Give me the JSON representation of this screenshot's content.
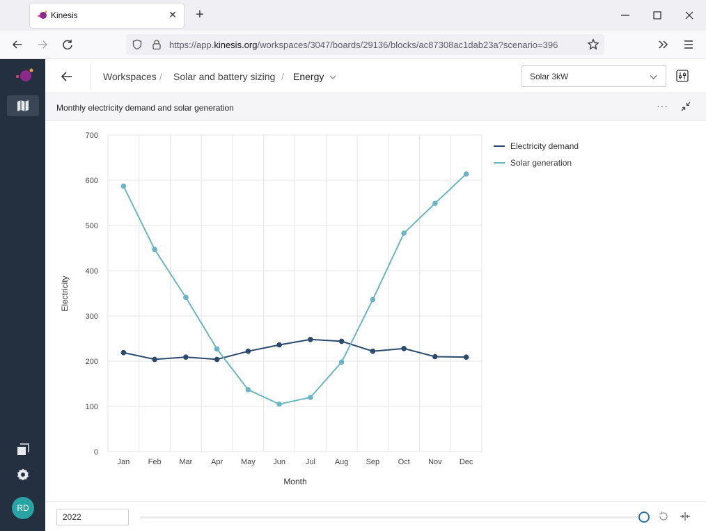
{
  "browser": {
    "tab_title": "Kinesis",
    "url_prefix": "https://app.",
    "url_domain": "kinesis.org",
    "url_path": "/workspaces/3047/boards/29136/blocks/ac87308ac1dab23a?scenario=396"
  },
  "sidebar": {
    "avatar_initials": "RD"
  },
  "header": {
    "breadcrumbs": [
      "Workspaces",
      "Solar and battery sizing",
      "Energy"
    ],
    "scenario_selected": "Solar 3kW"
  },
  "block": {
    "title": "Monthly electricity demand and solar generation"
  },
  "footer": {
    "year_value": "2022"
  },
  "colors": {
    "demand": "#2b4a6b",
    "solar": "#6bb5c2",
    "sidebar": "#243040",
    "accent": "#2c6e9a"
  },
  "chart_data": {
    "type": "line",
    "x": [
      "Jan",
      "Feb",
      "Mar",
      "Apr",
      "May",
      "Jun",
      "Jul",
      "Aug",
      "Sep",
      "Oct",
      "Nov",
      "Dec"
    ],
    "series": [
      {
        "name": "Electricity demand",
        "values": [
          219,
          204,
          209,
          204,
          222,
          236,
          248,
          244,
          222,
          228,
          210,
          209
        ]
      },
      {
        "name": "Solar generation",
        "values": [
          587,
          447,
          341,
          227,
          137,
          105,
          120,
          198,
          336,
          483,
          549,
          614
        ]
      }
    ],
    "xlabel": "Month",
    "ylabel": "Electricity",
    "ylim": [
      0,
      700
    ],
    "yticks": [
      0,
      100,
      200,
      300,
      400,
      500,
      600,
      700
    ],
    "grid": true,
    "legend": "top-right"
  }
}
